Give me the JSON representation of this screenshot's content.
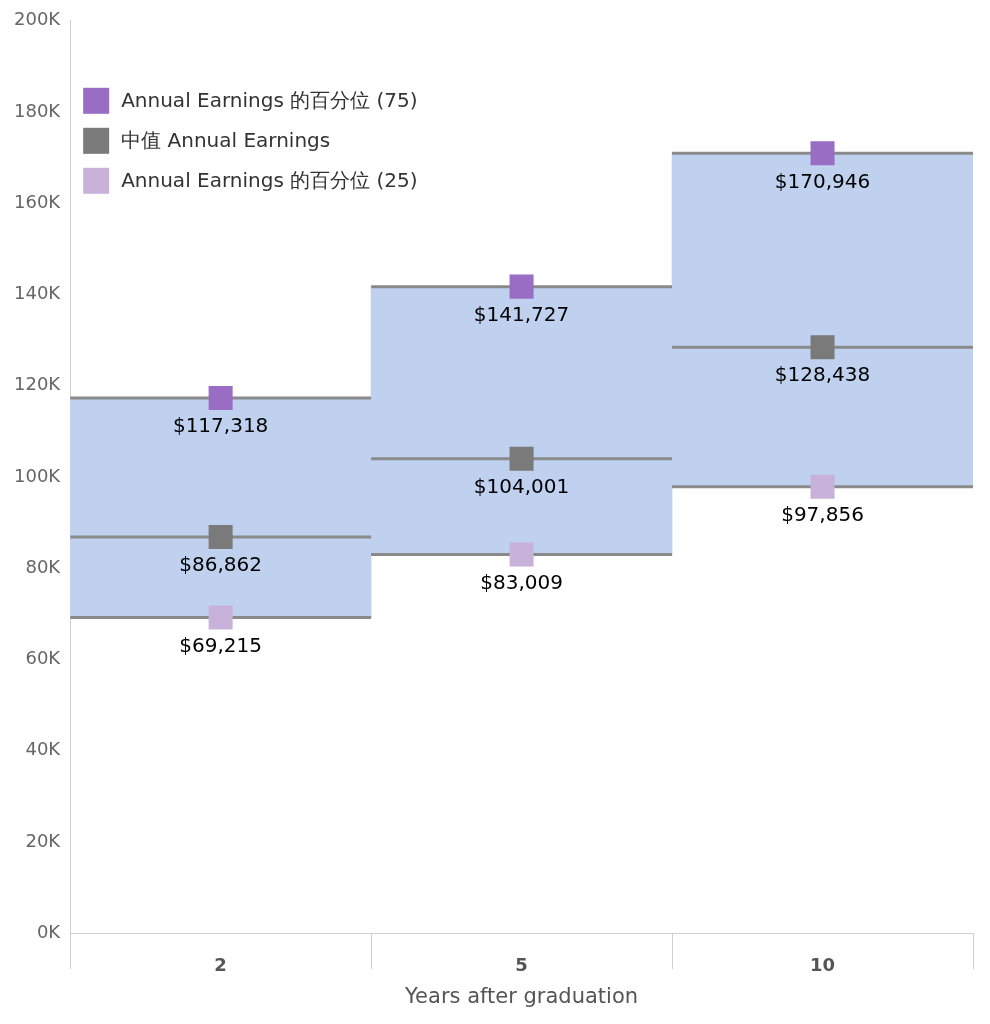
{
  "chart_data": {
    "type": "box",
    "x_label": "Years after graduation",
    "categories": [
      "2",
      "5",
      "10"
    ],
    "series": [
      {
        "name": "Annual Earnings 的百分位 (75)",
        "color": "#9a6dc5",
        "values": [
          117318,
          141727,
          170946
        ],
        "value_labels": [
          "$117,318",
          "$141,727",
          "$170,946"
        ]
      },
      {
        "name": "中值 Annual Earnings",
        "color": "#7a7a7a",
        "values": [
          86862,
          104001,
          128438
        ],
        "value_labels": [
          "$86,862",
          "$104,001",
          "$128,438"
        ]
      },
      {
        "name": "Annual Earnings 的百分位 (25)",
        "color": "#c9b2da",
        "values": [
          69215,
          83009,
          97856
        ],
        "value_labels": [
          "$69,215",
          "$83,009",
          "$97,856"
        ]
      }
    ],
    "ylim": [
      0,
      200000
    ],
    "yticks": [
      {
        "value": 0,
        "label": "0K"
      },
      {
        "value": 20000,
        "label": "20K"
      },
      {
        "value": 40000,
        "label": "40K"
      },
      {
        "value": 60000,
        "label": "60K"
      },
      {
        "value": 80000,
        "label": "80K"
      },
      {
        "value": 100000,
        "label": "100K"
      },
      {
        "value": 120000,
        "label": "120K"
      },
      {
        "value": 140000,
        "label": "140K"
      },
      {
        "value": 160000,
        "label": "160K"
      },
      {
        "value": 180000,
        "label": "180K"
      },
      {
        "value": 200000,
        "label": "200K"
      }
    ],
    "grid": false,
    "legend": "top-left",
    "data_labels": true
  }
}
